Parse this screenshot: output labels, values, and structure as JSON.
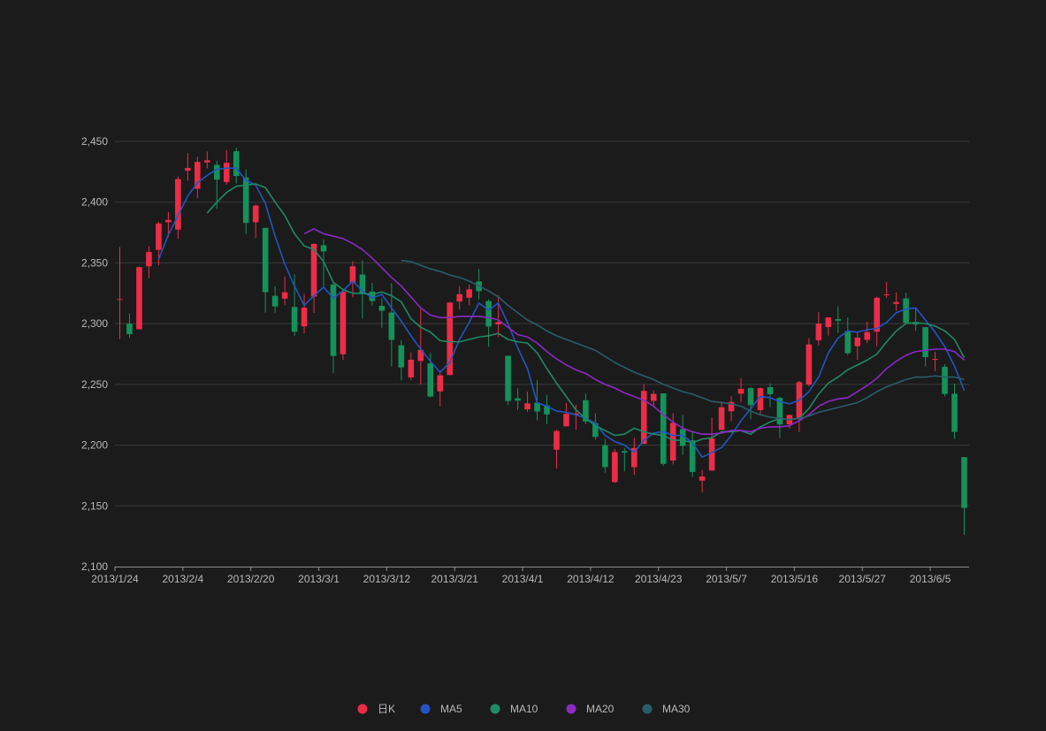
{
  "chart_data": {
    "type": "candlestick",
    "title": "",
    "xlabel": "",
    "ylabel": "",
    "ylim": [
      2100,
      2450
    ],
    "yticks": [
      2100,
      2150,
      2200,
      2250,
      2300,
      2350,
      2400,
      2450
    ],
    "ytick_labels": [
      "2,100",
      "2,150",
      "2,200",
      "2,250",
      "2,300",
      "2,350",
      "2,400",
      "2,450"
    ],
    "grid": true,
    "legend_position": "bottom",
    "colors": {
      "up": "#ec2c48",
      "down": "#13925b",
      "MA5": "#2255c2",
      "MA10": "#1f8a64",
      "MA20": "#8a2ac2",
      "MA30": "#2a5d6a",
      "grid": "#3a3a3a",
      "axis": "#8f8f8f",
      "background": "#1b1b1b"
    },
    "legend": [
      {
        "name": "日K",
        "color": "#ec2c48"
      },
      {
        "name": "MA5",
        "color": "#2255c2"
      },
      {
        "name": "MA10",
        "color": "#1f8a64"
      },
      {
        "name": "MA20",
        "color": "#8a2ac2"
      },
      {
        "name": "MA30",
        "color": "#2a5d6a"
      }
    ],
    "x_tick_labels": [
      {
        "label": "2013/1/24",
        "index": 0
      },
      {
        "label": "2013/2/4",
        "index": 7
      },
      {
        "label": "2013/2/20",
        "index": 14
      },
      {
        "label": "2013/3/1",
        "index": 21
      },
      {
        "label": "2013/3/12",
        "index": 28
      },
      {
        "label": "2013/3/21",
        "index": 35
      },
      {
        "label": "2013/4/1",
        "index": 42
      },
      {
        "label": "2013/4/12",
        "index": 49
      },
      {
        "label": "2013/4/23",
        "index": 56
      },
      {
        "label": "2013/5/7",
        "index": 63
      },
      {
        "label": "2013/5/16",
        "index": 70
      },
      {
        "label": "2013/5/27",
        "index": 77
      },
      {
        "label": "2013/6/5",
        "index": 84
      }
    ],
    "candles": [
      [
        2320.26,
        2320.26,
        2287.3,
        2362.94
      ],
      [
        2300,
        2291.3,
        2288.26,
        2308.38
      ],
      [
        2295.35,
        2346.5,
        2295.35,
        2346.92
      ],
      [
        2347.22,
        2358.98,
        2337.35,
        2363.8
      ],
      [
        2360.75,
        2382.48,
        2347.89,
        2383.76
      ],
      [
        2383.43,
        2385.42,
        2371.23,
        2391.82
      ],
      [
        2377.41,
        2419.02,
        2369.57,
        2421.15
      ],
      [
        2425.92,
        2428.15,
        2417.58,
        2440.38
      ],
      [
        2411,
        2433.13,
        2403.3,
        2437.42
      ],
      [
        2432.68,
        2434.48,
        2427.7,
        2441.73
      ],
      [
        2430.69,
        2418.53,
        2394.22,
        2433.89
      ],
      [
        2416.62,
        2432.4,
        2414.4,
        2443.03
      ],
      [
        2441.91,
        2421.56,
        2415.43,
        2444.8
      ],
      [
        2420.26,
        2382.91,
        2373.53,
        2427.07
      ],
      [
        2383.49,
        2397.18,
        2370.61,
        2397.94
      ],
      [
        2378.82,
        2325.95,
        2309.17,
        2378.82
      ],
      [
        2322.94,
        2314.16,
        2308.76,
        2330.88
      ],
      [
        2320.62,
        2325.82,
        2315.01,
        2338.78
      ],
      [
        2313.74,
        2293.34,
        2289.89,
        2340.71
      ],
      [
        2297.77,
        2313.22,
        2292.03,
        2324.63
      ],
      [
        2322.32,
        2365.59,
        2308.92,
        2366.16
      ],
      [
        2364.54,
        2359.51,
        2330.86,
        2369.65
      ],
      [
        2332.08,
        2273.4,
        2259.25,
        2333.54
      ],
      [
        2274.81,
        2326.31,
        2270.1,
        2328.14
      ],
      [
        2333.61,
        2347.18,
        2321.6,
        2351.44
      ],
      [
        2340.44,
        2324.29,
        2304.27,
        2352.02
      ],
      [
        2326.42,
        2318.61,
        2314.59,
        2333.67
      ],
      [
        2314.68,
        2310.59,
        2296.58,
        2320.96
      ],
      [
        2309.16,
        2286.6,
        2264.83,
        2333.29
      ],
      [
        2282.17,
        2263.97,
        2253.25,
        2286.33
      ],
      [
        2255.77,
        2270.28,
        2253.31,
        2276.22
      ],
      [
        2269.31,
        2278.4,
        2250,
        2312.08
      ],
      [
        2267.29,
        2240.02,
        2239.21,
        2276.05
      ],
      [
        2244.26,
        2257.43,
        2232.02,
        2261.31
      ],
      [
        2257.74,
        2317.37,
        2257.42,
        2317.86
      ],
      [
        2318.21,
        2324.24,
        2311.6,
        2330.81
      ],
      [
        2321.4,
        2328.28,
        2314.97,
        2332
      ],
      [
        2334.74,
        2326.72,
        2319.91,
        2344.89
      ],
      [
        2318.58,
        2297.67,
        2281.12,
        2319.99
      ],
      [
        2299.38,
        2301.26,
        2289,
        2323.48
      ],
      [
        2273.55,
        2236.3,
        2232.91,
        2273.55
      ],
      [
        2238.49,
        2236.62,
        2228.81,
        2246.87
      ],
      [
        2229.46,
        2234.4,
        2227.31,
        2243.95
      ],
      [
        2234.9,
        2227.74,
        2220.44,
        2253.42
      ],
      [
        2232.69,
        2225.29,
        2217.25,
        2241.34
      ],
      [
        2196.24,
        2211.59,
        2180.67,
        2212.59
      ],
      [
        2215.47,
        2225.77,
        2215.47,
        2234.73
      ],
      [
        2224.93,
        2226.13,
        2212.56,
        2233.04
      ],
      [
        2236.98,
        2219.55,
        2217.26,
        2242.48
      ],
      [
        2218.09,
        2206.78,
        2204.44,
        2226.26
      ],
      [
        2199.91,
        2181.94,
        2177.39,
        2204.99
      ],
      [
        2169.63,
        2194.27,
        2168.9,
        2196.91
      ],
      [
        2195.03,
        2193.8,
        2178.47,
        2197.51
      ],
      [
        2181.82,
        2197.6,
        2175.44,
        2206.03
      ],
      [
        2201.12,
        2244.64,
        2200.58,
        2250.11
      ],
      [
        2236.4,
        2242.17,
        2232.26,
        2245.12
      ],
      [
        2242.62,
        2184.54,
        2182.81,
        2242.62
      ],
      [
        2187.35,
        2218.32,
        2184.11,
        2226.12
      ],
      [
        2213.19,
        2199.31,
        2191.85,
        2224.63
      ],
      [
        2203.89,
        2177.91,
        2173.86,
        2210.58
      ],
      [
        2170.78,
        2174.12,
        2161.14,
        2179.65
      ],
      [
        2179.05,
        2205.5,
        2179.05,
        2222.81
      ],
      [
        2212.5,
        2231.17,
        2212.5,
        2236.07
      ],
      [
        2227.86,
        2235.57,
        2219.44,
        2240.26
      ],
      [
        2242.39,
        2246.3,
        2235.42,
        2255.21
      ],
      [
        2246.96,
        2232.97,
        2221.38,
        2247.86
      ],
      [
        2228.82,
        2246.83,
        2225.81,
        2247.67
      ],
      [
        2247.68,
        2241.92,
        2231.36,
        2250.85
      ],
      [
        2238.9,
        2217.01,
        2205.87,
        2239.93
      ],
      [
        2217.09,
        2224.8,
        2213.58,
        2225.19
      ],
      [
        2221.34,
        2251.81,
        2210.77,
        2252.87
      ],
      [
        2249.81,
        2282.87,
        2248.41,
        2288.09
      ],
      [
        2286.33,
        2299.99,
        2281.9,
        2309.39
      ],
      [
        2297.11,
        2305.11,
        2290.12,
        2305.3
      ],
      [
        2303.75,
        2302.4,
        2292.43,
        2314.18
      ],
      [
        2293.81,
        2275.67,
        2274.1,
        2304.95
      ],
      [
        2281.45,
        2288.53,
        2270.25,
        2292.59
      ],
      [
        2286.66,
        2293.08,
        2283.94,
        2301.7
      ],
      [
        2293.4,
        2321.32,
        2281.47,
        2322.1
      ],
      [
        2323.54,
        2324.02,
        2321.17,
        2334.33
      ],
      [
        2316.25,
        2317.75,
        2310.49,
        2325.72
      ],
      [
        2320.74,
        2300.59,
        2299.37,
        2325.53
      ],
      [
        2300.21,
        2299.25,
        2294.11,
        2313.43
      ],
      [
        2297.1,
        2272.42,
        2264.76,
        2297.1
      ],
      [
        2270.71,
        2270.93,
        2260.87,
        2276.86
      ],
      [
        2264.43,
        2242.11,
        2240.07,
        2266.69
      ],
      [
        2242.26,
        2210.9,
        2205.07,
        2250.63
      ],
      [
        2190.1,
        2148.35,
        2126.22,
        2190.1
      ]
    ],
    "series": [
      {
        "name": "MA5",
        "values": [
          null,
          null,
          null,
          null,
          2353,
          2373,
          2389,
          2405,
          2416,
          2422,
          2427,
          2428,
          2428,
          2418,
          2414,
          2399,
          2372,
          2349,
          2331,
          2315,
          2323,
          2330,
          2321,
          2327,
          2335,
          2327,
          2321,
          2324,
          2313,
          2302,
          2290,
          2279,
          2269,
          2260,
          2268,
          2287,
          2301,
          2317,
          2311,
          2317,
          2300,
          2280,
          2263,
          2235,
          2232,
          2228,
          2227,
          2225,
          2222,
          2218,
          2208,
          2203,
          2200,
          2194,
          2204,
          2210,
          2211,
          2208,
          2208,
          2202,
          2190,
          2194,
          2198,
          2208,
          2220,
          2230,
          2240,
          2239,
          2236,
          2234,
          2237,
          2244,
          2256,
          2276,
          2288,
          2294,
          2293,
          2295,
          2296,
          2301,
          2309,
          2312,
          2313,
          2303,
          2293,
          2281,
          2265,
          2245
        ]
      },
      {
        "name": "MA10",
        "values": [
          null,
          null,
          null,
          null,
          null,
          null,
          null,
          null,
          null,
          2391,
          2400,
          2408,
          2413,
          2414,
          2415,
          2412,
          2400,
          2389,
          2374,
          2364,
          2361,
          2351,
          2334,
          2328,
          2325,
          2325,
          2324,
          2326,
          2323,
          2318,
          2304,
          2297,
          2293,
          2286,
          2285,
          2285,
          2287,
          2289,
          2290,
          2292,
          2287,
          2285,
          2284,
          2276,
          2263,
          2251,
          2240,
          2229,
          2222,
          2216,
          2212,
          2208,
          2209,
          2214,
          2211,
          2209,
          2208,
          2204,
          2204,
          2202,
          2205,
          2206,
          2211,
          2211,
          2212,
          2209,
          2215,
          2219,
          2222,
          2221,
          2222,
          2230,
          2242,
          2251,
          2256,
          2262,
          2266,
          2270,
          2275,
          2285,
          2294,
          2300,
          2301,
          2300,
          2298,
          2294,
          2287,
          2272
        ]
      },
      {
        "name": "MA20",
        "values": [
          null,
          null,
          null,
          null,
          null,
          null,
          null,
          null,
          null,
          null,
          null,
          null,
          null,
          null,
          null,
          null,
          null,
          null,
          null,
          2374,
          2378,
          2374,
          2372,
          2370,
          2366,
          2361,
          2354,
          2346,
          2338,
          2331,
          2322,
          2313,
          2307,
          2305,
          2305,
          2306,
          2306,
          2306,
          2305,
          2303,
          2297,
          2291,
          2289,
          2284,
          2277,
          2271,
          2266,
          2262,
          2259,
          2254,
          2250,
          2247,
          2243,
          2240,
          2237,
          2232,
          2225,
          2219,
          2214,
          2211,
          2209,
          2209,
          2210,
          2212,
          2212,
          2211,
          2214,
          2215,
          2215,
          2216,
          2220,
          2225,
          2232,
          2236,
          2238,
          2239,
          2244,
          2249,
          2255,
          2263,
          2269,
          2274,
          2277,
          2278,
          2279,
          2279,
          2277,
          2270
        ]
      },
      {
        "name": "MA30",
        "values": [
          null,
          null,
          null,
          null,
          null,
          null,
          null,
          null,
          null,
          null,
          null,
          null,
          null,
          null,
          null,
          null,
          null,
          null,
          null,
          null,
          null,
          null,
          null,
          null,
          null,
          null,
          null,
          null,
          null,
          2352,
          2351,
          2348,
          2345,
          2343,
          2340,
          2338,
          2335,
          2331,
          2327,
          2322,
          2315,
          2309,
          2303,
          2299,
          2294,
          2290,
          2287,
          2284,
          2281,
          2278,
          2273,
          2268,
          2264,
          2260,
          2257,
          2254,
          2250,
          2247,
          2244,
          2242,
          2239,
          2236,
          2235,
          2234,
          2232,
          2228,
          2225,
          2223,
          2222,
          2221,
          2222,
          2224,
          2227,
          2229,
          2231,
          2233,
          2235,
          2239,
          2244,
          2248,
          2251,
          2254,
          2256,
          2256,
          2257,
          2256,
          2256,
          2254
        ]
      }
    ]
  }
}
